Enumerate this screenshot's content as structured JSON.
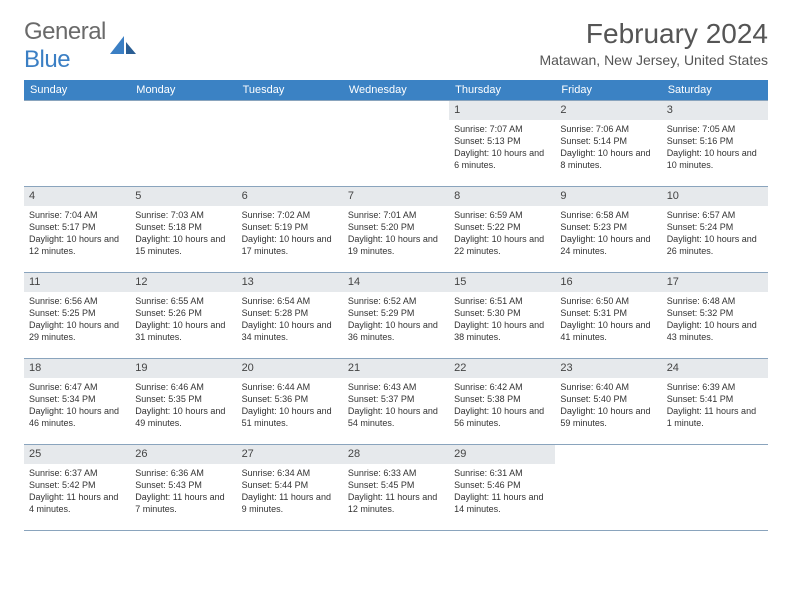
{
  "logo": {
    "text_a": "General",
    "text_b": "Blue"
  },
  "title": "February 2024",
  "location": "Matawan, New Jersey, United States",
  "colors": {
    "header_bg": "#3b82c4",
    "daynum_bg": "#e6e9ec",
    "divider": "#8aa4bd",
    "logo_gray": "#6a6a6a",
    "logo_blue": "#3b7fc4"
  },
  "weekdays": [
    "Sunday",
    "Monday",
    "Tuesday",
    "Wednesday",
    "Thursday",
    "Friday",
    "Saturday"
  ],
  "weeks": [
    [
      null,
      null,
      null,
      null,
      {
        "n": "1",
        "sr": "7:07 AM",
        "ss": "5:13 PM",
        "dl": "10 hours and 6 minutes."
      },
      {
        "n": "2",
        "sr": "7:06 AM",
        "ss": "5:14 PM",
        "dl": "10 hours and 8 minutes."
      },
      {
        "n": "3",
        "sr": "7:05 AM",
        "ss": "5:16 PM",
        "dl": "10 hours and 10 minutes."
      }
    ],
    [
      {
        "n": "4",
        "sr": "7:04 AM",
        "ss": "5:17 PM",
        "dl": "10 hours and 12 minutes."
      },
      {
        "n": "5",
        "sr": "7:03 AM",
        "ss": "5:18 PM",
        "dl": "10 hours and 15 minutes."
      },
      {
        "n": "6",
        "sr": "7:02 AM",
        "ss": "5:19 PM",
        "dl": "10 hours and 17 minutes."
      },
      {
        "n": "7",
        "sr": "7:01 AM",
        "ss": "5:20 PM",
        "dl": "10 hours and 19 minutes."
      },
      {
        "n": "8",
        "sr": "6:59 AM",
        "ss": "5:22 PM",
        "dl": "10 hours and 22 minutes."
      },
      {
        "n": "9",
        "sr": "6:58 AM",
        "ss": "5:23 PM",
        "dl": "10 hours and 24 minutes."
      },
      {
        "n": "10",
        "sr": "6:57 AM",
        "ss": "5:24 PM",
        "dl": "10 hours and 26 minutes."
      }
    ],
    [
      {
        "n": "11",
        "sr": "6:56 AM",
        "ss": "5:25 PM",
        "dl": "10 hours and 29 minutes."
      },
      {
        "n": "12",
        "sr": "6:55 AM",
        "ss": "5:26 PM",
        "dl": "10 hours and 31 minutes."
      },
      {
        "n": "13",
        "sr": "6:54 AM",
        "ss": "5:28 PM",
        "dl": "10 hours and 34 minutes."
      },
      {
        "n": "14",
        "sr": "6:52 AM",
        "ss": "5:29 PM",
        "dl": "10 hours and 36 minutes."
      },
      {
        "n": "15",
        "sr": "6:51 AM",
        "ss": "5:30 PM",
        "dl": "10 hours and 38 minutes."
      },
      {
        "n": "16",
        "sr": "6:50 AM",
        "ss": "5:31 PM",
        "dl": "10 hours and 41 minutes."
      },
      {
        "n": "17",
        "sr": "6:48 AM",
        "ss": "5:32 PM",
        "dl": "10 hours and 43 minutes."
      }
    ],
    [
      {
        "n": "18",
        "sr": "6:47 AM",
        "ss": "5:34 PM",
        "dl": "10 hours and 46 minutes."
      },
      {
        "n": "19",
        "sr": "6:46 AM",
        "ss": "5:35 PM",
        "dl": "10 hours and 49 minutes."
      },
      {
        "n": "20",
        "sr": "6:44 AM",
        "ss": "5:36 PM",
        "dl": "10 hours and 51 minutes."
      },
      {
        "n": "21",
        "sr": "6:43 AM",
        "ss": "5:37 PM",
        "dl": "10 hours and 54 minutes."
      },
      {
        "n": "22",
        "sr": "6:42 AM",
        "ss": "5:38 PM",
        "dl": "10 hours and 56 minutes."
      },
      {
        "n": "23",
        "sr": "6:40 AM",
        "ss": "5:40 PM",
        "dl": "10 hours and 59 minutes."
      },
      {
        "n": "24",
        "sr": "6:39 AM",
        "ss": "5:41 PM",
        "dl": "11 hours and 1 minute."
      }
    ],
    [
      {
        "n": "25",
        "sr": "6:37 AM",
        "ss": "5:42 PM",
        "dl": "11 hours and 4 minutes."
      },
      {
        "n": "26",
        "sr": "6:36 AM",
        "ss": "5:43 PM",
        "dl": "11 hours and 7 minutes."
      },
      {
        "n": "27",
        "sr": "6:34 AM",
        "ss": "5:44 PM",
        "dl": "11 hours and 9 minutes."
      },
      {
        "n": "28",
        "sr": "6:33 AM",
        "ss": "5:45 PM",
        "dl": "11 hours and 12 minutes."
      },
      {
        "n": "29",
        "sr": "6:31 AM",
        "ss": "5:46 PM",
        "dl": "11 hours and 14 minutes."
      },
      null,
      null
    ]
  ],
  "labels": {
    "sunrise": "Sunrise:",
    "sunset": "Sunset:",
    "daylight": "Daylight:"
  }
}
